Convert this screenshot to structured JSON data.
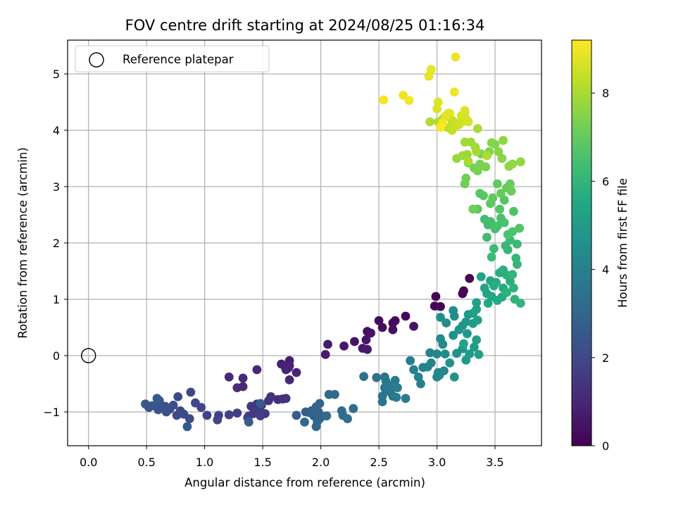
{
  "chart_data": {
    "type": "scatter",
    "title": "FOV centre drift starting at 2024/08/25 01:16:34",
    "xlabel": "Angular distance from reference (arcmin)",
    "ylabel": "Rotation from reference (arcmin)",
    "xlim": [
      -0.18,
      3.9
    ],
    "ylim": [
      -1.6,
      5.6
    ],
    "xticks": [
      0.0,
      0.5,
      1.0,
      1.5,
      2.0,
      2.5,
      3.0,
      3.5
    ],
    "xtick_labels": [
      "0.0",
      "0.5",
      "1.0",
      "1.5",
      "2.0",
      "2.5",
      "3.0",
      "3.5"
    ],
    "yticks": [
      -1,
      0,
      1,
      2,
      3,
      4,
      5
    ],
    "ytick_labels": [
      "−1",
      "0",
      "1",
      "2",
      "3",
      "4",
      "5"
    ],
    "grid": true,
    "legend": {
      "position": "top-left",
      "entries": [
        "Reference platepar"
      ]
    },
    "reference_point": {
      "x": 0.0,
      "y": 0.0
    },
    "colorbar": {
      "label": "Hours from first FF file",
      "colormap": "viridis",
      "range": [
        0,
        9.2
      ],
      "ticks": [
        0,
        2,
        4,
        6,
        8
      ],
      "tick_labels": [
        "0",
        "2",
        "4",
        "6",
        "8"
      ]
    },
    "series": [
      {
        "points": [
          [
            3.28,
            1.37
          ],
          [
            2.99,
            1.05
          ],
          [
            3.23,
            1.15
          ],
          [
            3.22,
            1.1
          ],
          [
            2.98,
            0.88
          ],
          [
            3.03,
            0.87
          ],
          [
            2.73,
            0.7
          ],
          [
            2.64,
            0.62
          ],
          [
            2.62,
            0.58
          ],
          [
            2.5,
            0.62
          ],
          [
            2.53,
            0.5
          ],
          [
            2.62,
            0.46
          ],
          [
            2.4,
            0.43
          ],
          [
            2.43,
            0.4
          ],
          [
            2.8,
            0.52
          ],
          [
            2.39,
            0.28
          ],
          [
            2.29,
            0.25
          ],
          [
            2.2,
            0.17
          ],
          [
            2.36,
            0.13
          ],
          [
            2.4,
            0.11
          ],
          [
            2.06,
            0.2
          ],
          [
            2.04,
            0.02
          ],
          [
            1.73,
            -0.09
          ],
          [
            1.66,
            -0.15
          ],
          [
            1.73,
            -0.18
          ],
          [
            1.69,
            -0.19
          ],
          [
            1.72,
            -0.22
          ],
          [
            1.7,
            -0.25
          ],
          [
            1.79,
            -0.3
          ],
          [
            1.73,
            -0.43
          ],
          [
            1.45,
            -0.25
          ],
          [
            1.33,
            -0.4
          ],
          [
            1.21,
            -0.38
          ],
          [
            1.33,
            -0.55
          ],
          [
            1.28,
            -0.57
          ]
        ]
      },
      {
        "points": [
          [
            1.63,
            -0.78
          ],
          [
            1.67,
            -0.77
          ],
          [
            1.7,
            -0.76
          ],
          [
            1.57,
            -0.73
          ],
          [
            1.55,
            -0.8
          ],
          [
            1.45,
            -0.86
          ],
          [
            1.49,
            -0.88
          ],
          [
            1.4,
            -0.9
          ],
          [
            1.47,
            -0.95
          ],
          [
            1.52,
            -1.03
          ],
          [
            1.42,
            -1.03
          ],
          [
            1.38,
            -1.07
          ],
          [
            1.48,
            -1.07
          ],
          [
            1.37,
            -1.1
          ],
          [
            1.28,
            -1.02
          ],
          [
            1.21,
            -1.05
          ],
          [
            1.12,
            -1.06
          ],
          [
            1.02,
            -1.06
          ],
          [
            1.11,
            -1.14
          ],
          [
            0.97,
            -0.92
          ],
          [
            0.92,
            -0.84
          ],
          [
            0.88,
            -0.65
          ],
          [
            0.77,
            -0.73
          ],
          [
            0.79,
            -0.98
          ],
          [
            0.82,
            -1.04
          ],
          [
            0.87,
            -1.12
          ],
          [
            0.76,
            -1.06
          ],
          [
            0.73,
            -0.88
          ],
          [
            0.7,
            -0.95
          ],
          [
            0.67,
            -1.0
          ],
          [
            0.66,
            -0.9
          ],
          [
            0.64,
            -0.94
          ],
          [
            0.61,
            -0.8
          ],
          [
            0.58,
            -0.88
          ],
          [
            0.6,
            -0.96
          ],
          [
            0.55,
            -0.89
          ],
          [
            0.52,
            -0.92
          ],
          [
            0.49,
            -0.86
          ],
          [
            0.59,
            -0.76
          ],
          [
            0.85,
            -1.26
          ],
          [
            1.38,
            -1.18
          ],
          [
            1.48,
            -0.85
          ]
        ]
      },
      {
        "points": [
          [
            1.79,
            -1.06
          ],
          [
            1.87,
            -1.0
          ],
          [
            1.9,
            -1.01
          ],
          [
            1.92,
            -0.98
          ],
          [
            1.96,
            -0.91
          ],
          [
            1.99,
            -0.85
          ],
          [
            1.98,
            -1.0
          ],
          [
            1.94,
            -1.07
          ],
          [
            2.01,
            -1.08
          ],
          [
            1.99,
            -1.12
          ],
          [
            1.97,
            -1.17
          ],
          [
            1.96,
            -1.26
          ],
          [
            1.86,
            -1.18
          ],
          [
            2.05,
            -1.07
          ],
          [
            2.07,
            -0.69
          ],
          [
            2.12,
            -0.69
          ],
          [
            2.18,
            -0.98
          ],
          [
            2.19,
            -1.06
          ],
          [
            2.23,
            -1.12
          ],
          [
            2.28,
            -0.94
          ],
          [
            2.37,
            -0.37
          ],
          [
            2.48,
            -0.39
          ],
          [
            2.55,
            -0.38
          ],
          [
            2.56,
            -0.45
          ],
          [
            2.55,
            -0.57
          ],
          [
            2.53,
            -0.72
          ],
          [
            2.53,
            -0.82
          ],
          [
            2.56,
            -0.63
          ],
          [
            2.6,
            -0.65
          ],
          [
            2.62,
            -0.72
          ],
          [
            2.59,
            -0.54
          ],
          [
            2.64,
            -0.44
          ],
          [
            2.65,
            -0.74
          ],
          [
            2.73,
            -0.76
          ],
          [
            2.66,
            -0.57
          ]
        ]
      },
      {
        "points": [
          [
            2.77,
            -0.09
          ],
          [
            2.8,
            -0.25
          ],
          [
            2.84,
            -0.38
          ],
          [
            2.86,
            -0.5
          ],
          [
            2.88,
            -0.21
          ],
          [
            2.92,
            -0.2
          ],
          [
            2.95,
            -0.13
          ],
          [
            2.94,
            0.05
          ],
          [
            3.0,
            0.03
          ],
          [
            3.01,
            -0.3
          ],
          [
            3.0,
            -0.38
          ],
          [
            3.02,
            -0.35
          ],
          [
            3.06,
            -0.27
          ],
          [
            3.03,
            0.3
          ],
          [
            3.05,
            0.2
          ],
          [
            3.07,
            0.03
          ],
          [
            3.08,
            0.58
          ],
          [
            3.03,
            0.68
          ],
          [
            3.14,
            0.8
          ],
          [
            3.15,
            0.7
          ],
          [
            3.14,
            0.36
          ],
          [
            3.11,
            -0.13
          ],
          [
            3.15,
            -0.38
          ],
          [
            3.17,
            0.04
          ],
          [
            3.22,
            0.12
          ],
          [
            3.19,
            0.46
          ],
          [
            3.22,
            0.53
          ],
          [
            3.25,
            0.6
          ],
          [
            3.27,
            0.73
          ],
          [
            3.26,
            0.39
          ],
          [
            3.31,
            0.57
          ],
          [
            3.28,
            0.03
          ],
          [
            3.25,
            -0.08
          ],
          [
            3.32,
            0.15
          ],
          [
            3.34,
            0.28
          ],
          [
            3.36,
            0.02
          ],
          [
            3.35,
            0.63
          ],
          [
            3.31,
            0.75
          ],
          [
            3.34,
            0.82
          ],
          [
            3.34,
            0.94
          ],
          [
            3.23,
            0.21
          ]
        ]
      },
      {
        "points": [
          [
            3.38,
            1.4
          ],
          [
            3.43,
            1.1
          ],
          [
            3.41,
            1.2
          ],
          [
            3.46,
            1.33
          ],
          [
            3.47,
            1.05
          ],
          [
            3.44,
            0.93
          ],
          [
            3.52,
            0.98
          ],
          [
            3.56,
            1.04
          ],
          [
            3.49,
            1.24
          ],
          [
            3.57,
            1.2
          ],
          [
            3.51,
            1.3
          ],
          [
            3.54,
            1.47
          ],
          [
            3.6,
            1.43
          ],
          [
            3.63,
            1.32
          ],
          [
            3.57,
            1.52
          ],
          [
            3.6,
            1.12
          ],
          [
            3.66,
            1.2
          ],
          [
            3.67,
            1.0
          ],
          [
            3.72,
            0.93
          ],
          [
            3.65,
            1.44
          ],
          [
            3.69,
            1.62
          ],
          [
            3.68,
            1.73
          ],
          [
            3.61,
            1.88
          ],
          [
            3.59,
            1.95
          ],
          [
            3.63,
            2.05
          ],
          [
            3.69,
            1.98
          ],
          [
            3.49,
            1.9
          ],
          [
            3.47,
            1.75
          ],
          [
            3.43,
            2.1
          ],
          [
            3.44,
            2.32
          ],
          [
            3.41,
            2.42
          ],
          [
            3.46,
            2.38
          ],
          [
            3.52,
            2.3
          ],
          [
            3.55,
            2.44
          ],
          [
            3.5,
            2.25
          ],
          [
            3.58,
            2.36
          ],
          [
            3.61,
            2.15
          ],
          [
            3.65,
            2.2
          ],
          [
            3.66,
            2.56
          ],
          [
            3.71,
            2.26
          ],
          [
            3.54,
            2.6
          ],
          [
            3.58,
            2.76
          ]
        ]
      },
      {
        "points": [
          [
            3.37,
            2.88
          ],
          [
            3.4,
            2.84
          ],
          [
            3.35,
            2.6
          ],
          [
            3.46,
            2.7
          ],
          [
            3.48,
            2.8
          ],
          [
            3.52,
            3.05
          ],
          [
            3.55,
            2.88
          ],
          [
            3.6,
            2.98
          ],
          [
            3.64,
            2.92
          ],
          [
            3.63,
            3.05
          ],
          [
            3.31,
            2.6
          ],
          [
            3.24,
            3.05
          ],
          [
            3.25,
            3.15
          ],
          [
            3.27,
            3.42
          ],
          [
            3.32,
            3.33
          ],
          [
            3.35,
            3.28
          ],
          [
            3.37,
            3.4
          ],
          [
            3.42,
            3.35
          ],
          [
            3.38,
            3.58
          ],
          [
            3.45,
            3.62
          ],
          [
            3.47,
            3.78
          ],
          [
            3.5,
            3.75
          ],
          [
            3.53,
            3.62
          ],
          [
            3.56,
            3.5
          ],
          [
            3.57,
            3.82
          ],
          [
            3.62,
            3.36
          ],
          [
            3.65,
            3.4
          ],
          [
            3.72,
            3.44
          ],
          [
            3.17,
            3.5
          ],
          [
            3.22,
            3.55
          ],
          [
            3.26,
            3.57
          ],
          [
            3.24,
            3.79
          ],
          [
            3.29,
            3.79
          ],
          [
            3.33,
            3.7
          ],
          [
            3.34,
            3.62
          ],
          [
            3.35,
            4.03
          ],
          [
            3.27,
            3.45
          ],
          [
            3.43,
            3.55
          ]
        ]
      },
      {
        "points": [
          [
            2.94,
            4.15
          ],
          [
            3.01,
            4.15
          ],
          [
            3.03,
            4.08
          ],
          [
            3.05,
            4.2
          ],
          [
            3.07,
            4.24
          ],
          [
            3.09,
            4.05
          ],
          [
            3.1,
            4.3
          ],
          [
            3.13,
            4.0
          ],
          [
            3.13,
            4.18
          ],
          [
            3.16,
            4.07
          ],
          [
            3.18,
            4.13
          ],
          [
            3.19,
            4.1
          ],
          [
            3.22,
            4.15
          ],
          [
            3.24,
            4.3
          ],
          [
            3.26,
            4.18
          ],
          [
            3.21,
            4.26
          ],
          [
            3.27,
            4.15
          ],
          [
            3.24,
            4.35
          ],
          [
            3.0,
            4.38
          ],
          [
            3.01,
            4.5
          ],
          [
            3.08,
            4.26
          ],
          [
            3.11,
            4.3
          ],
          [
            2.93,
            4.96
          ],
          [
            2.95,
            5.08
          ],
          [
            3.16,
            5.3
          ],
          [
            3.15,
            4.68
          ],
          [
            2.71,
            4.62
          ],
          [
            2.76,
            4.53
          ],
          [
            2.54,
            4.54
          ],
          [
            3.05,
            4.13
          ],
          [
            3.03,
            4.05
          ]
        ]
      }
    ]
  }
}
